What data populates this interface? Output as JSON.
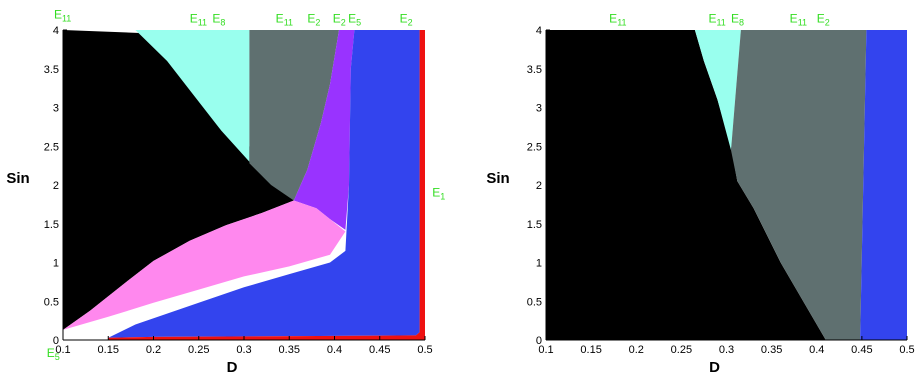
{
  "chart_data": [
    {
      "type": "area",
      "xlabel": "D",
      "ylabel": "Sin",
      "xlim": [
        0.1,
        0.5
      ],
      "ylim": [
        0,
        4
      ],
      "xticks": [
        "0.1",
        "0.15",
        "0.2",
        "0.25",
        "0.3",
        "0.35",
        "0.4",
        "0.45",
        "0.5"
      ],
      "yticks": [
        "0",
        "0.5",
        "1",
        "1.5",
        "2",
        "2.5",
        "3",
        "3.5",
        "4"
      ],
      "grid": false,
      "regions": [
        {
          "color": "#000000",
          "points": [
            [
              0.1,
              0.13
            ],
            [
              0.13,
              0.38
            ],
            [
              0.17,
              0.75
            ],
            [
              0.2,
              1.02
            ],
            [
              0.24,
              1.28
            ],
            [
              0.28,
              1.48
            ],
            [
              0.32,
              1.64
            ],
            [
              0.355,
              1.8
            ],
            [
              0.33,
              2.15
            ],
            [
              0.3,
              2.58
            ],
            [
              0.27,
              3.05
            ],
            [
              0.24,
              3.55
            ],
            [
              0.21,
              3.95
            ],
            [
              0.1,
              4.0
            ]
          ]
        },
        {
          "color": "#99ffee",
          "points": [
            [
              0.18,
              4.0
            ],
            [
              0.306,
              4.0
            ],
            [
              0.306,
              2.3
            ],
            [
              0.275,
              2.7
            ],
            [
              0.245,
              3.15
            ],
            [
              0.215,
              3.6
            ]
          ]
        },
        {
          "color": "#5f7070",
          "points": [
            [
              0.306,
              4.0
            ],
            [
              0.405,
              4.0
            ],
            [
              0.395,
              3.3
            ],
            [
              0.385,
              2.8
            ],
            [
              0.37,
              2.2
            ],
            [
              0.355,
              1.8
            ],
            [
              0.33,
              2.0
            ],
            [
              0.306,
              2.28
            ]
          ]
        },
        {
          "color": "#9933ff",
          "points": [
            [
              0.405,
              4.0
            ],
            [
              0.422,
              4.0
            ],
            [
              0.418,
              3.5
            ],
            [
              0.416,
              2.0
            ],
            [
              0.412,
              1.42
            ],
            [
              0.395,
              1.56
            ],
            [
              0.38,
              1.7
            ],
            [
              0.355,
              1.8
            ],
            [
              0.37,
              2.2
            ],
            [
              0.385,
              2.8
            ],
            [
              0.395,
              3.3
            ]
          ]
        },
        {
          "color": "#ff88ee",
          "points": [
            [
              0.1,
              0.13
            ],
            [
              0.15,
              0.3
            ],
            [
              0.2,
              0.48
            ],
            [
              0.25,
              0.65
            ],
            [
              0.3,
              0.82
            ],
            [
              0.35,
              0.95
            ],
            [
              0.395,
              1.1
            ],
            [
              0.412,
              1.4
            ],
            [
              0.395,
              1.56
            ],
            [
              0.38,
              1.7
            ],
            [
              0.355,
              1.8
            ],
            [
              0.32,
              1.64
            ],
            [
              0.28,
              1.48
            ],
            [
              0.24,
              1.28
            ],
            [
              0.2,
              1.02
            ],
            [
              0.17,
              0.75
            ],
            [
              0.13,
              0.38
            ]
          ]
        },
        {
          "color": "#3344ee",
          "points": [
            [
              0.422,
              4.0
            ],
            [
              0.494,
              4.0
            ],
            [
              0.494,
              0.1
            ],
            [
              0.49,
              0.06
            ],
            [
              0.2,
              0.04
            ],
            [
              0.15,
              0.03
            ],
            [
              0.18,
              0.2
            ],
            [
              0.25,
              0.48
            ],
            [
              0.3,
              0.68
            ],
            [
              0.35,
              0.85
            ],
            [
              0.395,
              1.0
            ],
            [
              0.412,
              1.15
            ],
            [
              0.416,
              2.0
            ],
            [
              0.418,
              3.5
            ]
          ]
        },
        {
          "color": "#ee1111",
          "points": [
            [
              0.494,
              4.0
            ],
            [
              0.5,
              4.0
            ],
            [
              0.5,
              0.0
            ],
            [
              0.15,
              0.0
            ],
            [
              0.15,
              0.03
            ],
            [
              0.2,
              0.04
            ],
            [
              0.49,
              0.06
            ],
            [
              0.494,
              0.1
            ]
          ]
        }
      ],
      "labels": [
        {
          "text": "E",
          "sub": "11",
          "x": 0.09,
          "y": 4.15
        },
        {
          "text": "E",
          "sub": "11",
          "x": 0.24,
          "y": 4.1
        },
        {
          "text": "E",
          "sub": "8",
          "x": 0.265,
          "y": 4.1
        },
        {
          "text": "E",
          "sub": "11",
          "x": 0.335,
          "y": 4.1
        },
        {
          "text": "E",
          "sub": "2",
          "x": 0.37,
          "y": 4.1
        },
        {
          "text": "E",
          "sub": "2",
          "x": 0.398,
          "y": 4.1
        },
        {
          "text": "E",
          "sub": "5",
          "x": 0.415,
          "y": 4.1
        },
        {
          "text": "E",
          "sub": "2",
          "x": 0.472,
          "y": 4.1
        },
        {
          "text": "E",
          "sub": "1",
          "x": 0.508,
          "y": 1.85
        },
        {
          "text": "E",
          "sub": "5",
          "x": 0.082,
          "y": -0.22
        }
      ]
    },
    {
      "type": "area",
      "xlabel": "D",
      "ylabel": "Sin",
      "xlim": [
        0.1,
        0.5
      ],
      "ylim": [
        0,
        4
      ],
      "xticks": [
        "0.1",
        "0.15",
        "0.2",
        "0.25",
        "0.3",
        "0.35",
        "0.4",
        "0.45",
        "0.5"
      ],
      "yticks": [
        "0",
        "0.5",
        "1",
        "1.5",
        "2",
        "2.5",
        "3",
        "3.5",
        "4"
      ],
      "grid": false,
      "regions": [
        {
          "color": "#000000",
          "points": [
            [
              0.1,
              0.0
            ],
            [
              0.41,
              0.0
            ],
            [
              0.36,
              1.0
            ],
            [
              0.33,
              1.7
            ],
            [
              0.312,
              2.05
            ],
            [
              0.305,
              2.5
            ],
            [
              0.29,
              3.1
            ],
            [
              0.275,
              3.6
            ],
            [
              0.265,
              4.0
            ],
            [
              0.1,
              4.0
            ]
          ]
        },
        {
          "color": "#99ffee",
          "points": [
            [
              0.265,
              4.0
            ],
            [
              0.316,
              4.0
            ],
            [
              0.305,
              2.45
            ],
            [
              0.29,
              3.1
            ],
            [
              0.275,
              3.6
            ]
          ]
        },
        {
          "color": "#5f7070",
          "points": [
            [
              0.316,
              4.0
            ],
            [
              0.455,
              4.0
            ],
            [
              0.448,
              0.0
            ],
            [
              0.41,
              0.0
            ],
            [
              0.36,
              1.0
            ],
            [
              0.33,
              1.7
            ],
            [
              0.312,
              2.05
            ],
            [
              0.305,
              2.45
            ]
          ]
        },
        {
          "color": "#3344ee",
          "points": [
            [
              0.455,
              4.0
            ],
            [
              0.5,
              4.0
            ],
            [
              0.5,
              0.0
            ],
            [
              0.448,
              0.0
            ]
          ]
        }
      ],
      "labels": [
        {
          "text": "E",
          "sub": "11",
          "x": 0.17,
          "y": 4.1
        },
        {
          "text": "E",
          "sub": "11",
          "x": 0.28,
          "y": 4.1
        },
        {
          "text": "E",
          "sub": "8",
          "x": 0.305,
          "y": 4.1
        },
        {
          "text": "E",
          "sub": "11",
          "x": 0.37,
          "y": 4.1
        },
        {
          "text": "E",
          "sub": "2",
          "x": 0.4,
          "y": 4.1
        }
      ]
    }
  ]
}
